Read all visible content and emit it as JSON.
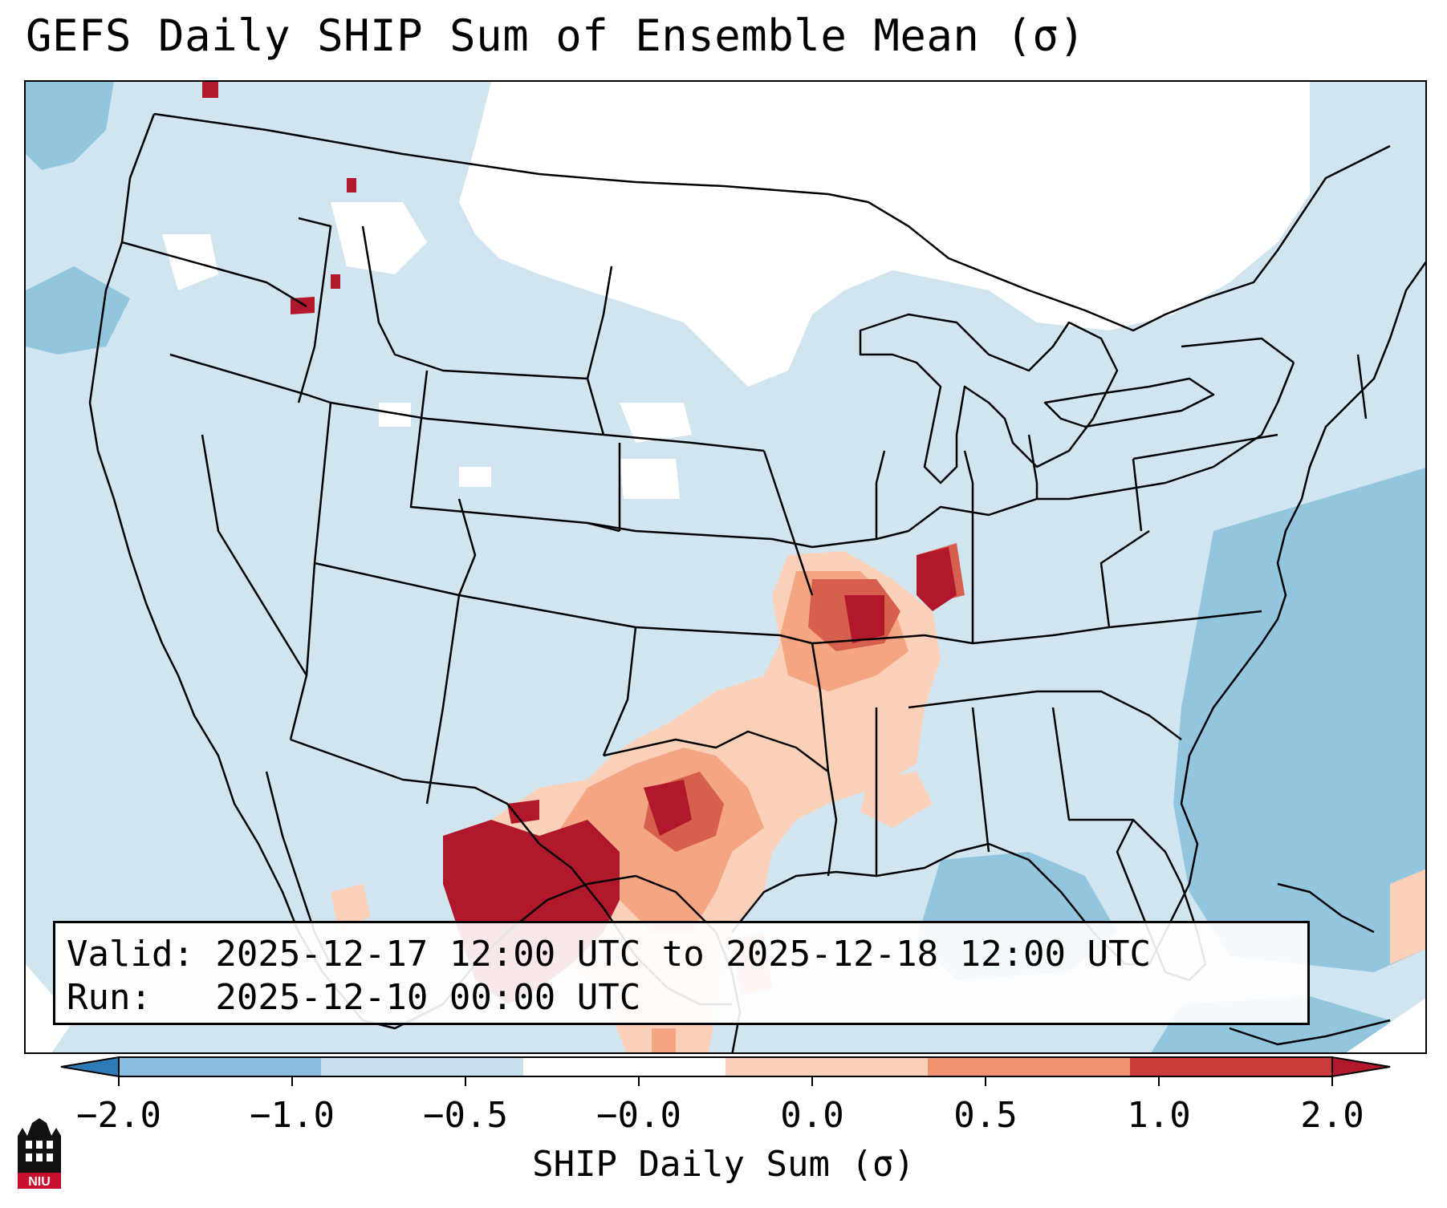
{
  "title": "GEFS Daily SHIP Sum of Ensemble Mean (σ)",
  "info": {
    "valid_line": "Valid: 2025-12-17 12:00 UTC to 2025-12-18 12:00 UTC",
    "run_line": "Run:   2025-12-10 00:00 UTC"
  },
  "colorbar": {
    "label": "SHIP Daily Sum (σ)",
    "ticks": [
      "−2.0",
      "−1.0",
      "−0.5",
      "−0.0",
      "0.0",
      "0.5",
      "1.0",
      "2.0"
    ],
    "colors": [
      "#2f79b5",
      "#88bedc",
      "#c7e0ed",
      "#ffffff",
      "#fbd0b9",
      "#f0946f",
      "#ca3b3a",
      "#b2182b"
    ],
    "extend": "both"
  },
  "logo": {
    "text": "NIU"
  },
  "map": {
    "region": "Contiguous United States",
    "ocean_color": "#d1e5f0",
    "land_color": "#d1e5f0",
    "boundary_color": "#000000"
  }
}
